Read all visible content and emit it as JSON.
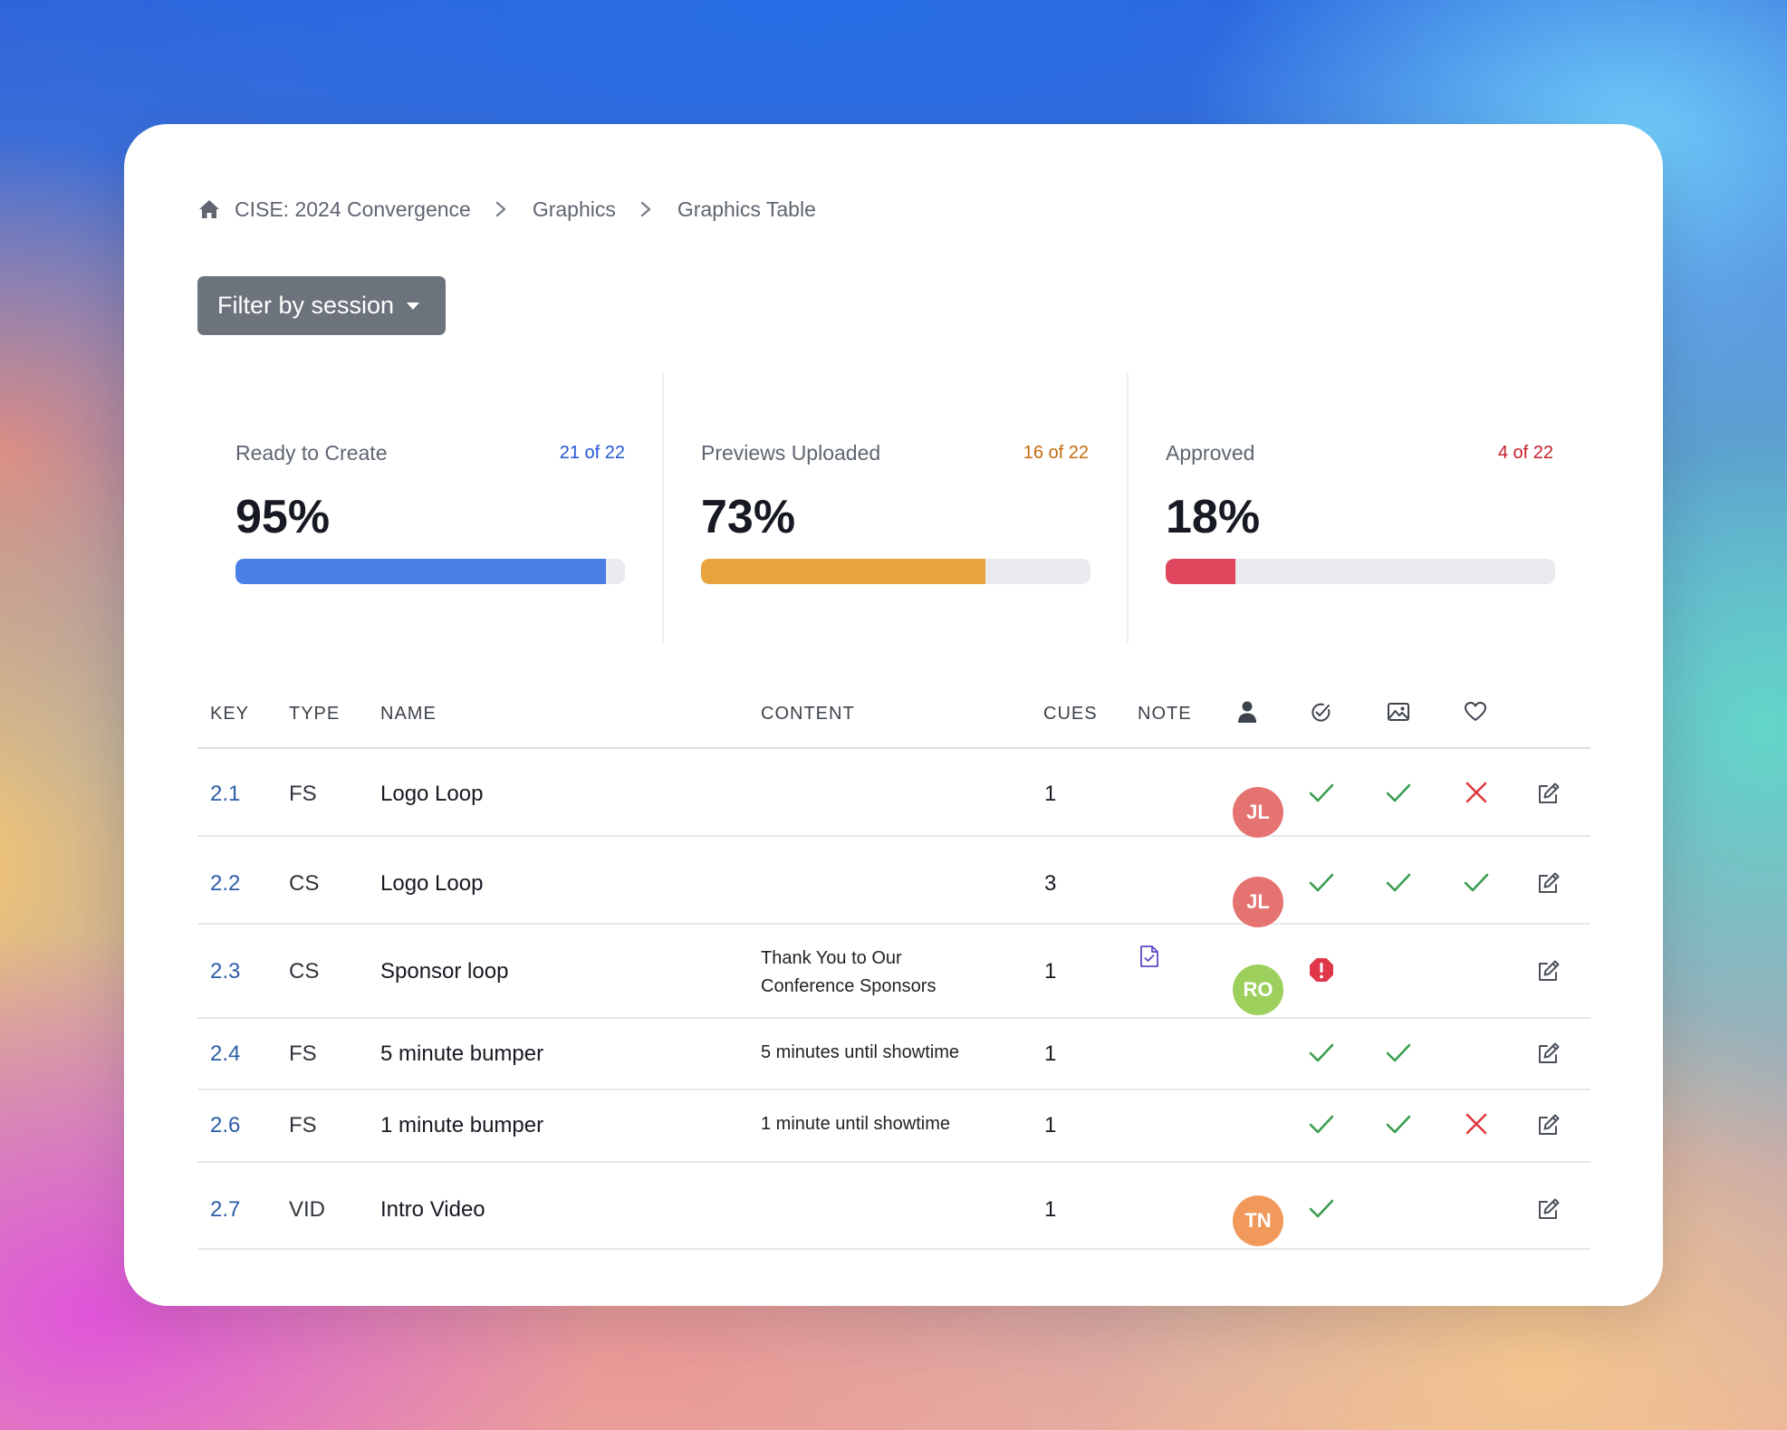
{
  "breadcrumb": {
    "items": [
      "CISE: 2024 Convergence",
      "Graphics",
      "Graphics Table"
    ]
  },
  "filter": {
    "label": "Filter by session"
  },
  "stats": [
    {
      "label": "Ready to Create",
      "count": "21 of 22",
      "percent": "95%",
      "progress": 0.95,
      "color": "#4a7fe6",
      "count_color": "#2255d6"
    },
    {
      "label": "Previews Uploaded",
      "count": "16 of 22",
      "percent": "73%",
      "progress": 0.73,
      "color": "#e8a33c",
      "count_color": "#c46a0c"
    },
    {
      "label": "Approved",
      "count": "4 of 22",
      "percent": "18%",
      "progress": 0.18,
      "color": "#e0475e",
      "count_color": "#c81e2a"
    }
  ],
  "table": {
    "headers": {
      "key": "KEY",
      "type": "TYPE",
      "name": "NAME",
      "content": "CONTENT",
      "cues": "CUES",
      "note": "NOTE"
    },
    "header_icons": [
      "person-icon",
      "check-circle-icon",
      "image-icon",
      "heart-icon"
    ],
    "rows": [
      {
        "key": "2.1",
        "type": "FS",
        "name": "Logo Loop",
        "content": "",
        "cues": "1",
        "note": false,
        "avatar": "JL",
        "avatar_color": "#e57371",
        "status": [
          "check",
          "check",
          "x"
        ]
      },
      {
        "key": "2.2",
        "type": "CS",
        "name": "Logo Loop",
        "content": "",
        "cues": "3",
        "note": false,
        "avatar": "JL",
        "avatar_color": "#e57371",
        "status": [
          "check",
          "check",
          "check"
        ]
      },
      {
        "key": "2.3",
        "type": "CS",
        "name": "Sponsor loop",
        "content": "Thank You to Our Conference Sponsors",
        "cues": "1",
        "note": true,
        "avatar": "RO",
        "avatar_color": "#9ccf5c",
        "status": [
          "alert",
          "",
          ""
        ]
      },
      {
        "key": "2.4",
        "type": "FS",
        "name": "5 minute bumper",
        "content": "5 minutes until showtime",
        "cues": "1",
        "note": false,
        "avatar": "",
        "avatar_color": "",
        "status": [
          "check",
          "check",
          ""
        ]
      },
      {
        "key": "2.6",
        "type": "FS",
        "name": "1 minute bumper",
        "content": "1 minute until showtime",
        "cues": "1",
        "note": false,
        "avatar": "",
        "avatar_color": "",
        "status": [
          "check",
          "check",
          "x"
        ]
      },
      {
        "key": "2.7",
        "type": "VID",
        "name": "Intro Video",
        "content": "",
        "cues": "1",
        "note": false,
        "avatar": "TN",
        "avatar_color": "#f0995a",
        "status": [
          "check",
          "",
          ""
        ]
      }
    ]
  }
}
